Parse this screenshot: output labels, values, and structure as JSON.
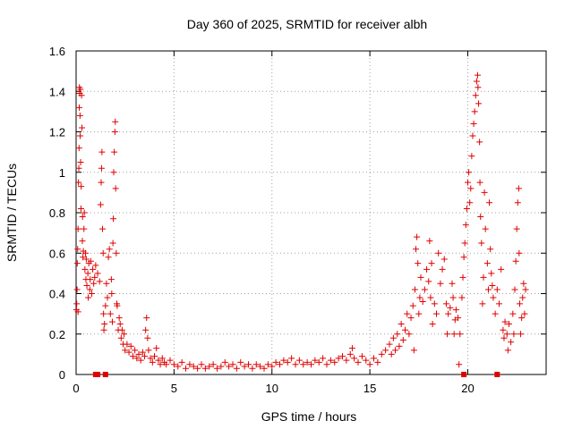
{
  "chart_data": {
    "type": "scatter",
    "title": "Day 360 of 2025, SRMTID for receiver albh",
    "xlabel": "GPS time / hours",
    "ylabel": "SRMTID / TECUs",
    "xlim": [
      0,
      24
    ],
    "ylim": [
      0,
      1.6
    ],
    "xticks": [
      0,
      5,
      10,
      15,
      20
    ],
    "xtick_labels": [
      "0",
      "5",
      "10",
      "15",
      "20"
    ],
    "yticks": [
      0,
      0.2,
      0.4,
      0.6,
      0.8,
      1,
      1.2,
      1.4,
      1.6
    ],
    "ytick_labels": [
      "0",
      "0.2",
      "0.4",
      "0.6",
      "0.8",
      "1",
      "1.2",
      "1.4",
      "1.6"
    ],
    "grid": true,
    "marker": "plus",
    "color": "#e00000",
    "zero_markers_x": [
      1.0,
      1.1,
      1.5,
      19.8,
      21.5
    ],
    "series": [
      {
        "name": "SRMTID",
        "points": [
          [
            0.02,
            0.32
          ],
          [
            0.03,
            0.35
          ],
          [
            0.05,
            0.42
          ],
          [
            0.06,
            0.55
          ],
          [
            0.08,
            0.62
          ],
          [
            0.1,
            0.72
          ],
          [
            0.1,
            0.31
          ],
          [
            0.12,
            0.95
          ],
          [
            0.14,
            1.02
          ],
          [
            0.15,
            1.12
          ],
          [
            0.16,
            1.32
          ],
          [
            0.17,
            1.42
          ],
          [
            0.18,
            1.39
          ],
          [
            0.2,
            1.28
          ],
          [
            0.21,
            1.18
          ],
          [
            0.22,
            1.41
          ],
          [
            0.23,
            1.05
          ],
          [
            0.25,
            0.82
          ],
          [
            0.26,
            0.93
          ],
          [
            0.28,
            1.38
          ],
          [
            0.3,
            1.22
          ],
          [
            0.32,
            0.66
          ],
          [
            0.33,
            0.78
          ],
          [
            0.35,
            0.58
          ],
          [
            0.37,
            0.61
          ],
          [
            0.4,
            0.72
          ],
          [
            0.42,
            0.8
          ],
          [
            0.45,
            0.52
          ],
          [
            0.48,
            0.6
          ],
          [
            0.5,
            0.47
          ],
          [
            0.52,
            0.57
          ],
          [
            0.55,
            0.44
          ],
          [
            0.6,
            0.5
          ],
          [
            0.62,
            0.38
          ],
          [
            0.65,
            0.55
          ],
          [
            0.7,
            0.42
          ],
          [
            0.72,
            0.47
          ],
          [
            0.75,
            0.56
          ],
          [
            0.8,
            0.4
          ],
          [
            0.85,
            0.52
          ],
          [
            0.9,
            0.45
          ],
          [
            0.95,
            0.48
          ],
          [
            1.0,
            0.54
          ],
          [
            1.1,
            0.5
          ],
          [
            1.2,
            0.46
          ],
          [
            1.25,
            0.84
          ],
          [
            1.28,
            0.95
          ],
          [
            1.3,
            1.02
          ],
          [
            1.32,
            1.1
          ],
          [
            1.35,
            0.72
          ],
          [
            1.38,
            0.6
          ],
          [
            1.4,
            0.3
          ],
          [
            1.42,
            0.22
          ],
          [
            1.45,
            0.25
          ],
          [
            1.5,
            0.34
          ],
          [
            1.55,
            0.45
          ],
          [
            1.6,
            0.38
          ],
          [
            1.65,
            0.58
          ],
          [
            1.7,
            0.62
          ],
          [
            1.75,
            0.3
          ],
          [
            1.8,
            0.47
          ],
          [
            1.82,
            0.4
          ],
          [
            1.85,
            0.26
          ],
          [
            1.88,
            0.65
          ],
          [
            1.9,
            0.77
          ],
          [
            1.92,
            1.0
          ],
          [
            1.95,
            1.1
          ],
          [
            1.98,
            1.2
          ],
          [
            2.0,
            1.25
          ],
          [
            2.02,
            0.92
          ],
          [
            2.05,
            0.6
          ],
          [
            2.08,
            0.35
          ],
          [
            2.1,
            0.34
          ],
          [
            2.15,
            0.22
          ],
          [
            2.2,
            0.28
          ],
          [
            2.25,
            0.25
          ],
          [
            2.3,
            0.18
          ],
          [
            2.35,
            0.22
          ],
          [
            2.4,
            0.15
          ],
          [
            2.45,
            0.2
          ],
          [
            2.5,
            0.12
          ],
          [
            2.6,
            0.15
          ],
          [
            2.7,
            0.11
          ],
          [
            2.8,
            0.14
          ],
          [
            2.9,
            0.09
          ],
          [
            3.0,
            0.12
          ],
          [
            3.1,
            0.08
          ],
          [
            3.2,
            0.1
          ],
          [
            3.3,
            0.07
          ],
          [
            3.4,
            0.11
          ],
          [
            3.5,
            0.09
          ],
          [
            3.55,
            0.22
          ],
          [
            3.6,
            0.28
          ],
          [
            3.65,
            0.18
          ],
          [
            3.7,
            0.12
          ],
          [
            3.8,
            0.08
          ],
          [
            3.9,
            0.06
          ],
          [
            4.0,
            0.09
          ],
          [
            4.1,
            0.13
          ],
          [
            4.2,
            0.07
          ],
          [
            4.3,
            0.05
          ],
          [
            4.4,
            0.08
          ],
          [
            4.5,
            0.06
          ],
          [
            4.6,
            0.05
          ],
          [
            4.8,
            0.07
          ],
          [
            5.0,
            0.05
          ],
          [
            5.2,
            0.04
          ],
          [
            5.4,
            0.06
          ],
          [
            5.6,
            0.03
          ],
          [
            5.8,
            0.05
          ],
          [
            6.0,
            0.04
          ],
          [
            6.2,
            0.03
          ],
          [
            6.4,
            0.05
          ],
          [
            6.6,
            0.03
          ],
          [
            6.8,
            0.04
          ],
          [
            7.0,
            0.05
          ],
          [
            7.2,
            0.03
          ],
          [
            7.4,
            0.04
          ],
          [
            7.6,
            0.06
          ],
          [
            7.8,
            0.04
          ],
          [
            8.0,
            0.05
          ],
          [
            8.2,
            0.03
          ],
          [
            8.4,
            0.06
          ],
          [
            8.6,
            0.04
          ],
          [
            8.8,
            0.05
          ],
          [
            9.0,
            0.03
          ],
          [
            9.2,
            0.05
          ],
          [
            9.4,
            0.04
          ],
          [
            9.6,
            0.03
          ],
          [
            9.8,
            0.05
          ],
          [
            10.0,
            0.04
          ],
          [
            10.2,
            0.06
          ],
          [
            10.4,
            0.05
          ],
          [
            10.6,
            0.07
          ],
          [
            10.8,
            0.06
          ],
          [
            11.0,
            0.08
          ],
          [
            11.2,
            0.05
          ],
          [
            11.4,
            0.07
          ],
          [
            11.6,
            0.05
          ],
          [
            11.8,
            0.06
          ],
          [
            12.0,
            0.05
          ],
          [
            12.2,
            0.07
          ],
          [
            12.4,
            0.06
          ],
          [
            12.6,
            0.08
          ],
          [
            12.8,
            0.05
          ],
          [
            13.0,
            0.07
          ],
          [
            13.2,
            0.06
          ],
          [
            13.4,
            0.08
          ],
          [
            13.6,
            0.09
          ],
          [
            13.8,
            0.07
          ],
          [
            14.0,
            0.1
          ],
          [
            14.1,
            0.13
          ],
          [
            14.2,
            0.08
          ],
          [
            14.4,
            0.06
          ],
          [
            14.6,
            0.09
          ],
          [
            14.8,
            0.07
          ],
          [
            15.0,
            0.05
          ],
          [
            15.2,
            0.08
          ],
          [
            15.4,
            0.06
          ],
          [
            15.6,
            0.1
          ],
          [
            15.8,
            0.12
          ],
          [
            16.0,
            0.15
          ],
          [
            16.1,
            0.1
          ],
          [
            16.2,
            0.18
          ],
          [
            16.3,
            0.12
          ],
          [
            16.4,
            0.2
          ],
          [
            16.5,
            0.14
          ],
          [
            16.6,
            0.25
          ],
          [
            16.7,
            0.17
          ],
          [
            16.8,
            0.22
          ],
          [
            16.9,
            0.3
          ],
          [
            17.0,
            0.2
          ],
          [
            17.1,
            0.28
          ],
          [
            17.2,
            0.34
          ],
          [
            17.25,
            0.12
          ],
          [
            17.3,
            0.42
          ],
          [
            17.35,
            0.62
          ],
          [
            17.4,
            0.68
          ],
          [
            17.45,
            0.55
          ],
          [
            17.5,
            0.3
          ],
          [
            17.55,
            0.38
          ],
          [
            17.6,
            0.48
          ],
          [
            17.7,
            0.36
          ],
          [
            17.8,
            0.42
          ],
          [
            17.9,
            0.52
          ],
          [
            18.0,
            0.46
          ],
          [
            18.05,
            0.66
          ],
          [
            18.1,
            0.38
          ],
          [
            18.15,
            0.55
          ],
          [
            18.2,
            0.25
          ],
          [
            18.3,
            0.35
          ],
          [
            18.4,
            0.3
          ],
          [
            18.5,
            0.6
          ],
          [
            18.6,
            0.45
          ],
          [
            18.7,
            0.52
          ],
          [
            18.8,
            0.57
          ],
          [
            18.9,
            0.35
          ],
          [
            18.95,
            0.2
          ],
          [
            19.0,
            0.3
          ],
          [
            19.1,
            0.33
          ],
          [
            19.2,
            0.45
          ],
          [
            19.25,
            0.38
          ],
          [
            19.3,
            0.2
          ],
          [
            19.35,
            0.27
          ],
          [
            19.4,
            0.32
          ],
          [
            19.5,
            0.28
          ],
          [
            19.55,
            0.05
          ],
          [
            19.6,
            0.2
          ],
          [
            19.7,
            0.38
          ],
          [
            19.75,
            0.48
          ],
          [
            19.8,
            0.58
          ],
          [
            19.85,
            0.65
          ],
          [
            19.9,
            0.74
          ],
          [
            19.95,
            0.82
          ],
          [
            20.0,
            0.95
          ],
          [
            20.05,
            1.0
          ],
          [
            20.1,
            0.85
          ],
          [
            20.15,
            0.92
          ],
          [
            20.2,
            1.08
          ],
          [
            20.25,
            1.18
          ],
          [
            20.3,
            1.24
          ],
          [
            20.35,
            1.3
          ],
          [
            20.4,
            1.38
          ],
          [
            20.45,
            1.45
          ],
          [
            20.5,
            1.48
          ],
          [
            20.52,
            1.42
          ],
          [
            20.55,
            1.34
          ],
          [
            20.6,
            1.15
          ],
          [
            20.62,
            0.95
          ],
          [
            20.65,
            0.78
          ],
          [
            20.7,
            0.65
          ],
          [
            20.75,
            0.35
          ],
          [
            20.8,
            0.48
          ],
          [
            20.85,
            0.9
          ],
          [
            20.9,
            0.72
          ],
          [
            21.0,
            0.55
          ],
          [
            21.05,
            0.42
          ],
          [
            21.1,
            0.85
          ],
          [
            21.15,
            0.62
          ],
          [
            21.2,
            0.5
          ],
          [
            21.25,
            0.44
          ],
          [
            21.3,
            0.38
          ],
          [
            21.4,
            0.3
          ],
          [
            21.5,
            0.42
          ],
          [
            21.6,
            0.35
          ],
          [
            21.7,
            0.52
          ],
          [
            21.8,
            0.22
          ],
          [
            21.85,
            0.18
          ],
          [
            21.9,
            0.26
          ],
          [
            22.0,
            0.2
          ],
          [
            22.05,
            0.12
          ],
          [
            22.1,
            0.25
          ],
          [
            22.2,
            0.16
          ],
          [
            22.3,
            0.3
          ],
          [
            22.35,
            0.2
          ],
          [
            22.4,
            0.42
          ],
          [
            22.45,
            0.56
          ],
          [
            22.5,
            0.72
          ],
          [
            22.55,
            0.85
          ],
          [
            22.6,
            0.92
          ],
          [
            22.62,
            0.6
          ],
          [
            22.65,
            0.35
          ],
          [
            22.7,
            0.2
          ],
          [
            22.75,
            0.28
          ],
          [
            22.8,
            0.38
          ],
          [
            22.85,
            0.45
          ],
          [
            22.9,
            0.3
          ],
          [
            22.95,
            0.42
          ]
        ]
      }
    ]
  }
}
